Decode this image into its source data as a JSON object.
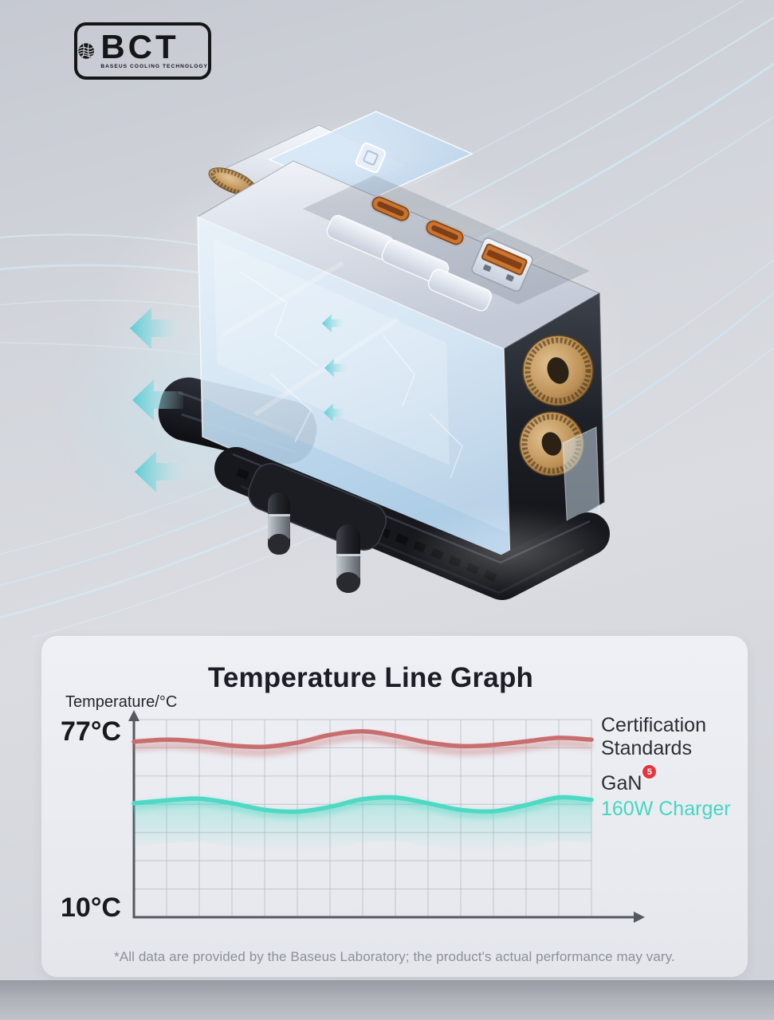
{
  "brand": {
    "abbr": "BCT",
    "full_name": "BASEUS COOLING TECHNOLOGY"
  },
  "icons": {
    "logo_globe": "globe-icon",
    "airflow_large": "airflow-arrow-left-icon",
    "airflow_small": "airflow-arrow-left-small-icon",
    "gan_badge": "superscript-5-badge"
  },
  "colors": {
    "background": "#d2d5db",
    "card_bg": "#eceef3",
    "certification_line": "#c96e6e",
    "charger_line": "#4fd9c4",
    "charger_text": "#45d6c2",
    "badge_red": "#e8333c",
    "streak_blue": "#cfe9f6",
    "base_black": "#17181d",
    "copper": "#c08850"
  },
  "chart": {
    "title": "Temperature Line Graph",
    "axis_label": "Temperature/°C",
    "y_top": "77°C",
    "y_bottom": "10°C",
    "legend": {
      "certification": "Certification Standards",
      "gan_prefix": "GaN",
      "gan_superscript": "5",
      "charger": "160W Charger"
    },
    "footnote": "*All data are provided by the Baseus Laboratory; the product's actual performance may vary."
  },
  "chart_data": {
    "type": "line",
    "title": "Temperature Line Graph",
    "ylabel": "Temperature/°C",
    "xlabel": "",
    "ylim": [
      10,
      77
    ],
    "y_ticks": [
      "77°C",
      "10°C"
    ],
    "x": [
      0,
      1,
      2,
      3,
      4,
      5,
      6,
      7,
      8,
      9,
      10,
      11,
      12,
      13,
      14
    ],
    "grid": {
      "columns": 15,
      "rows": 7
    },
    "legend_position": "right",
    "series": [
      {
        "name": "Certification Standards",
        "color": "#c96e6e",
        "values": [
          69.5,
          70.2,
          69.6,
          68.2,
          67.8,
          69.2,
          71.8,
          73.0,
          71.5,
          69.2,
          68.0,
          68.4,
          69.6,
          70.8,
          70.2
        ]
      },
      {
        "name": "GaN 160W Charger",
        "color": "#4fd9c4",
        "area_fill": true,
        "values": [
          48.6,
          49.6,
          50.2,
          48.6,
          46.4,
          45.8,
          47.4,
          50.0,
          50.6,
          48.6,
          46.4,
          45.9,
          48.0,
          50.6,
          49.8
        ]
      }
    ]
  }
}
